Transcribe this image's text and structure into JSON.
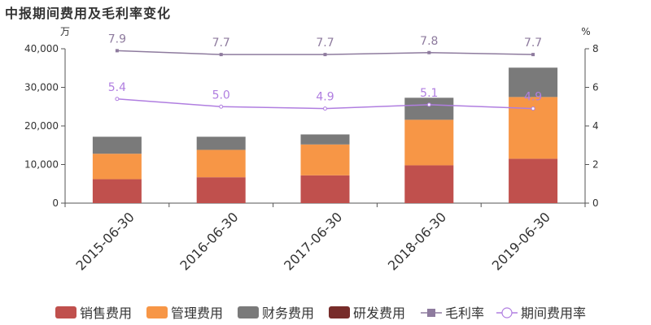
{
  "title": "中报期间费用及毛利率变化",
  "left_unit": "万",
  "right_unit": "%",
  "colors": {
    "sales": "#c0504d",
    "mgmt": "#f79646",
    "fin": "#7a7a7a",
    "rd": "#772c2a",
    "gross": "#8e7b9e",
    "period": "#b07ee0",
    "axis": "#555555"
  },
  "chart_data": {
    "type": "bar",
    "title": "中报期间费用及毛利率变化",
    "categories": [
      "2015-06-30",
      "2016-06-30",
      "2017-06-30",
      "2018-06-30",
      "2019-06-30"
    ],
    "series": [
      {
        "name": "销售费用",
        "type": "bar",
        "stack": "cost",
        "values": [
          6200,
          6700,
          7200,
          9800,
          11500
        ]
      },
      {
        "name": "管理费用",
        "type": "bar",
        "stack": "cost",
        "values": [
          6600,
          7100,
          8000,
          11800,
          16000
        ]
      },
      {
        "name": "财务费用",
        "type": "bar",
        "stack": "cost",
        "values": [
          4400,
          3400,
          2600,
          5700,
          7600
        ]
      },
      {
        "name": "研发费用",
        "type": "bar",
        "stack": "cost",
        "values": [
          0,
          0,
          0,
          0,
          0
        ]
      },
      {
        "name": "毛利率",
        "type": "line",
        "axis": "right",
        "values": [
          7.9,
          7.7,
          7.7,
          7.8,
          7.7
        ]
      },
      {
        "name": "期间费用率",
        "type": "line",
        "axis": "right",
        "values": [
          5.4,
          5.0,
          4.9,
          5.1,
          4.9
        ]
      }
    ],
    "y_left": {
      "unit": "万",
      "lim": [
        0,
        40000
      ],
      "ticks": [
        "0",
        "10,000",
        "20,000",
        "30,000",
        "40,000"
      ]
    },
    "y_right": {
      "unit": "%",
      "lim": [
        0,
        8
      ],
      "ticks": [
        "0",
        "2",
        "4",
        "6",
        "8"
      ]
    },
    "grid": false,
    "legend": "bottom"
  }
}
